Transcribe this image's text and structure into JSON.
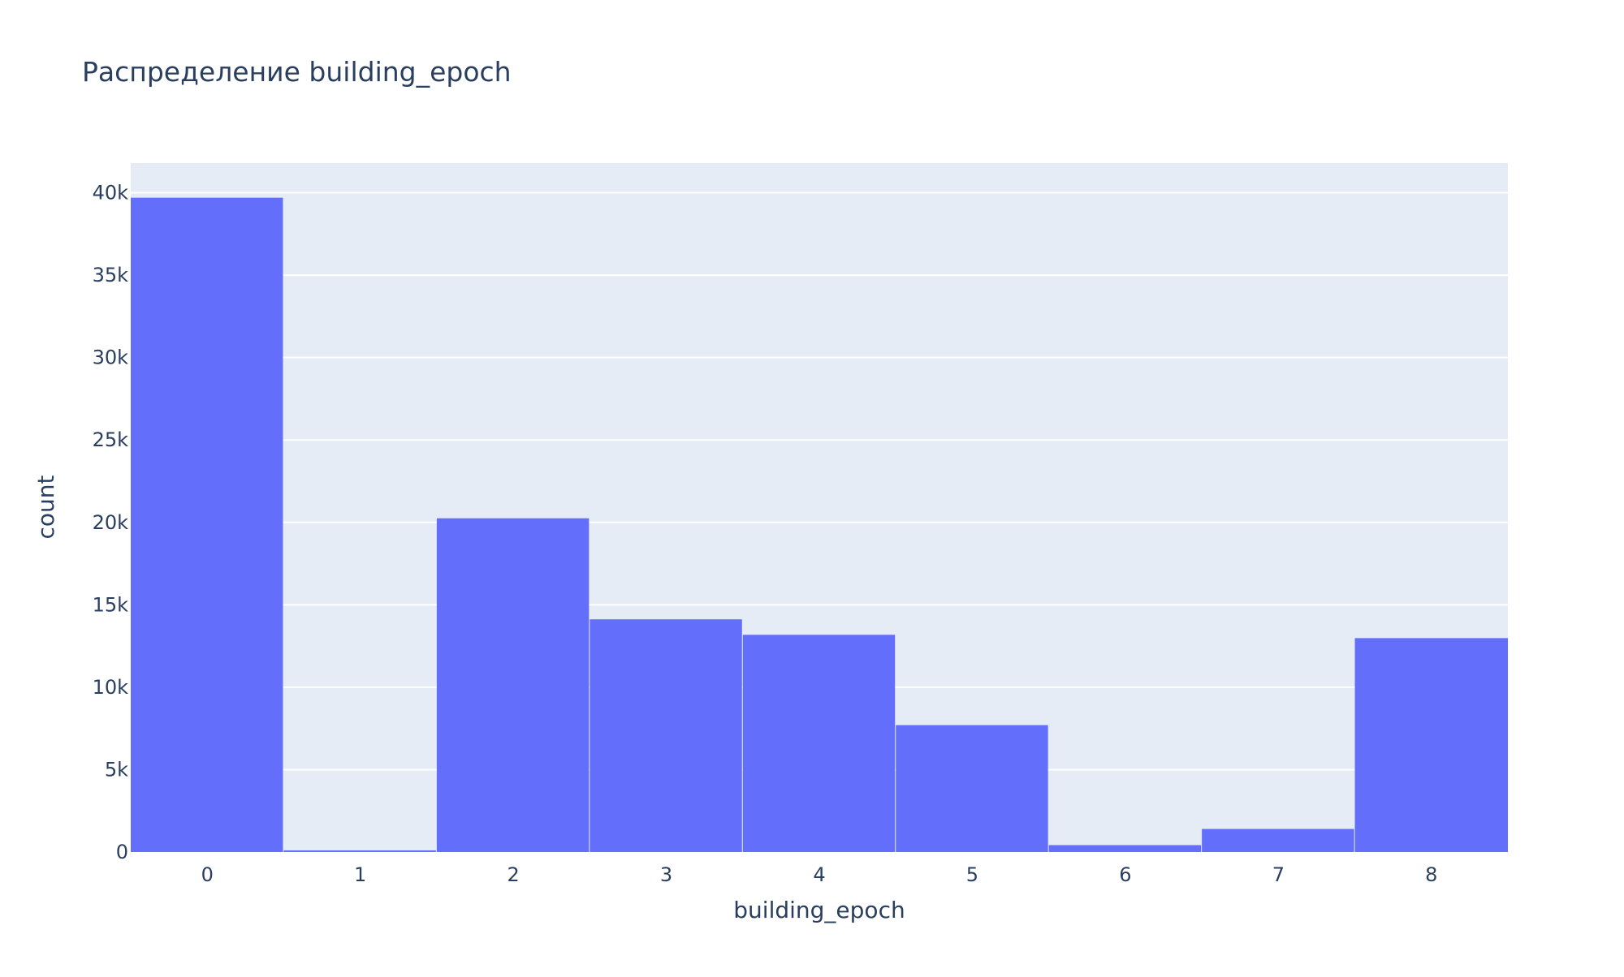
{
  "chart_data": {
    "type": "bar",
    "title": "Распределение building_epoch",
    "xlabel": "building_epoch",
    "ylabel": "count",
    "categories": [
      "0",
      "1",
      "2",
      "3",
      "4",
      "5",
      "6",
      "7",
      "8"
    ],
    "values": [
      39700,
      100,
      20250,
      14120,
      13180,
      7700,
      420,
      1400,
      12980
    ],
    "ylim": [
      0,
      41800
    ],
    "yticks": [
      0,
      5000,
      10000,
      15000,
      20000,
      25000,
      30000,
      35000,
      40000
    ],
    "ytick_labels": [
      "0",
      "5k",
      "10k",
      "15k",
      "20k",
      "25k",
      "30k",
      "35k",
      "40k"
    ],
    "grid": true,
    "bar_gap": 0,
    "colors": {
      "bar": "#636efa",
      "plot_background": "#e5ecf6",
      "gridline": "#ffffff",
      "text": "#2a3f5f"
    }
  }
}
